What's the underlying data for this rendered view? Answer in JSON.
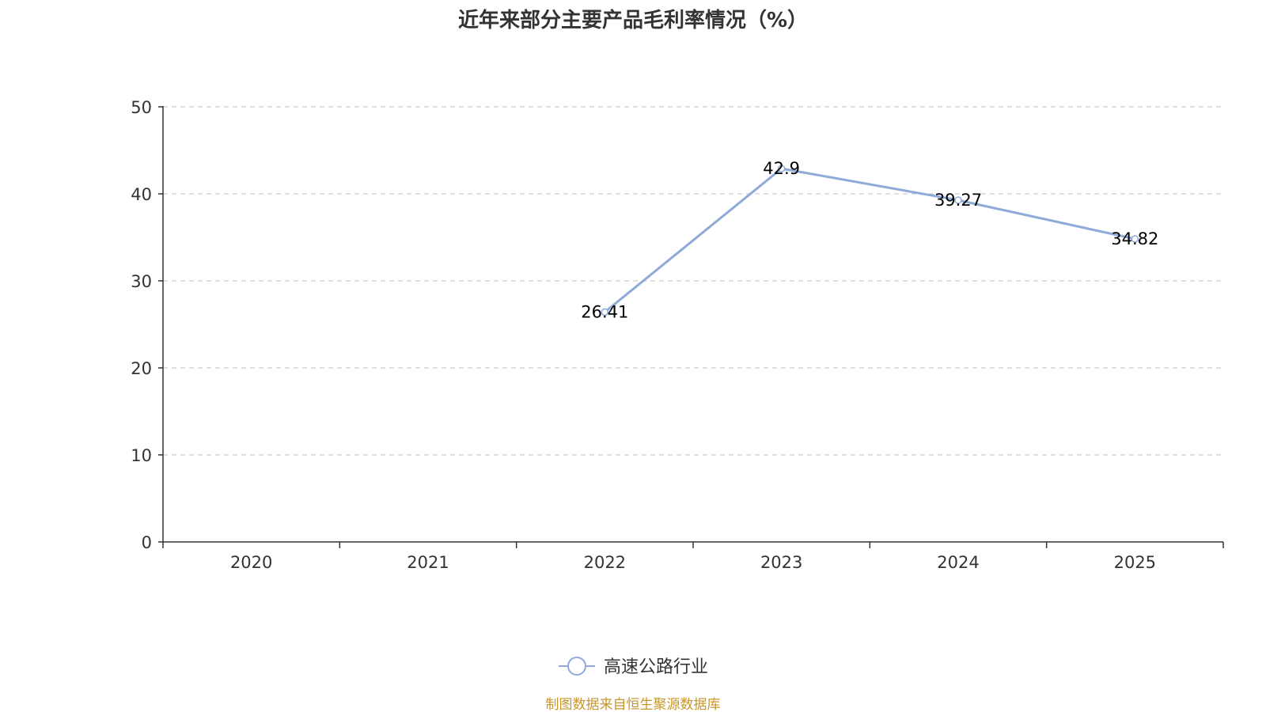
{
  "chart_data": {
    "type": "line",
    "title": "近年来部分主要产品毛利率情况（%）",
    "categories": [
      "2020",
      "2021",
      "2022",
      "2023",
      "2024",
      "2025"
    ],
    "series": [
      {
        "name": "高速公路行业",
        "values": [
          null,
          null,
          26.41,
          42.9,
          39.27,
          34.82
        ],
        "labels": [
          null,
          null,
          "26.41",
          "42.9",
          "39.27",
          "34.82"
        ],
        "color": "#8eaad8"
      }
    ],
    "ylim": [
      0,
      50
    ],
    "yticks": [
      "0",
      "10",
      "20",
      "30",
      "40",
      "50"
    ],
    "grid": true,
    "legend_position": "bottom-center",
    "xlabel": "",
    "ylabel": ""
  },
  "source": {
    "text": "制图数据来自恒生聚源数据库",
    "color": "#c8962a"
  },
  "colors": {
    "axis": "#333333",
    "grid": "#cccccc",
    "text": "#333333"
  }
}
